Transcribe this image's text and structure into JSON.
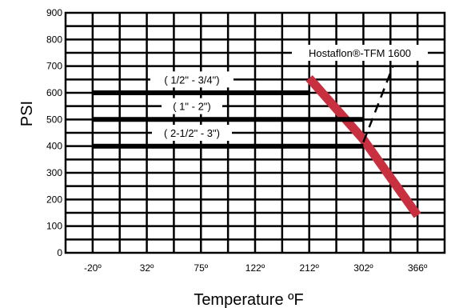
{
  "chart_data": {
    "type": "line",
    "xlabel": "Temperature ºF",
    "ylabel": "PSI",
    "x_ticks": [
      "-20º",
      "32º",
      "75º",
      "122º",
      "212º",
      "302º",
      "366º"
    ],
    "y_ticks": [
      0,
      100,
      200,
      300,
      400,
      500,
      600,
      700,
      800,
      900
    ],
    "ylim": [
      0,
      900
    ],
    "grid": true,
    "series": [
      {
        "name": "Hostaflon®-TFM 1600",
        "style": "thick-red",
        "points": [
          {
            "x": "212º",
            "y": 655
          },
          {
            "x": "302º",
            "y": 425
          },
          {
            "x": "366º",
            "y": 140
          }
        ]
      },
      {
        "name": "Hostaflon®-TFM 1600",
        "style": "dashed-black",
        "points": [
          {
            "x": "302º",
            "y": 415
          },
          {
            "x": "337º",
            "y": 700
          }
        ]
      },
      {
        "name": "( 1/2\" - 3/4\")",
        "style": "thick-black",
        "points": [
          {
            "x": "-20º",
            "y": 600
          },
          {
            "x": "212º",
            "y": 600
          }
        ]
      },
      {
        "name": "( 1\" - 2\")",
        "style": "thick-black",
        "points": [
          {
            "x": "-20º",
            "y": 500
          },
          {
            "x": "302º",
            "y": 500
          }
        ]
      },
      {
        "name": "( 2-1/2\" - 3\")",
        "style": "thick-black",
        "points": [
          {
            "x": "-20º",
            "y": 400
          },
          {
            "x": "302º",
            "y": 400
          }
        ]
      }
    ],
    "labels": {
      "hostaflon": "Hostaflon®-TFM 1600",
      "size_1": "( 1/2\" - 3/4\")",
      "size_2": "( 1\" - 2\")",
      "size_3": "( 2-1/2\" - 3\")"
    },
    "colors": {
      "hostaflon_line": "#c8303f",
      "grid": "#000000",
      "size_lines": "#000000"
    }
  }
}
